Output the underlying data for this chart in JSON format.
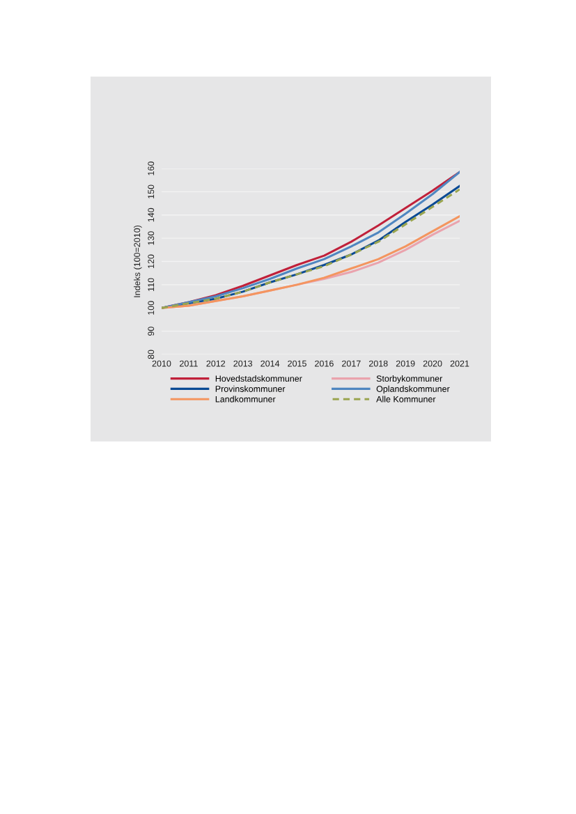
{
  "chart_data": {
    "type": "line",
    "ylabel": "Indeks (100=2010)",
    "x": [
      2010,
      2011,
      2012,
      2013,
      2014,
      2015,
      2016,
      2017,
      2018,
      2019,
      2020,
      2021
    ],
    "xlim": [
      2010,
      2021
    ],
    "xticks": [
      2010,
      2011,
      2012,
      2013,
      2014,
      2015,
      2016,
      2017,
      2018,
      2019,
      2020,
      2021
    ],
    "ylim": [
      80,
      160
    ],
    "yticks": [
      80,
      90,
      100,
      110,
      120,
      130,
      140,
      150,
      160
    ],
    "grid": "y",
    "legend": "bottom",
    "marker": "none",
    "series": [
      {
        "name": "Hovedstadskommuner",
        "color": "#c0203a",
        "values": [
          100,
          102.5,
          105.5,
          109.5,
          114,
          118.5,
          122.5,
          128.5,
          135.5,
          143,
          150.5,
          158.5
        ]
      },
      {
        "name": "Storbykommuner",
        "color": "#eaa3ad",
        "values": [
          100,
          101,
          103,
          105,
          107.5,
          110,
          112.5,
          115.5,
          119.5,
          125,
          131.5,
          137.5
        ]
      },
      {
        "name": "Provinskommuner",
        "color": "#0a4a94",
        "values": [
          100,
          102,
          104,
          107,
          111,
          114.5,
          118.5,
          123,
          129,
          137,
          144.5,
          152.5
        ]
      },
      {
        "name": "Oplandskommuner",
        "color": "#4f86c0",
        "values": [
          100,
          102.5,
          105,
          108.5,
          112.5,
          117,
          121,
          126.5,
          132.5,
          140.5,
          149,
          158.5
        ]
      },
      {
        "name": "Landkommuner",
        "color": "#f4955f",
        "values": [
          100,
          101,
          103,
          105,
          107.5,
          110,
          113,
          117,
          121,
          126.5,
          133,
          139.5
        ]
      },
      {
        "name": "Alle Kommuner",
        "color": "#9aa550",
        "line_style": "dashed",
        "values": [
          100,
          102,
          104,
          107,
          111,
          114.5,
          118,
          123,
          128.5,
          136,
          143.5,
          151
        ]
      }
    ]
  }
}
